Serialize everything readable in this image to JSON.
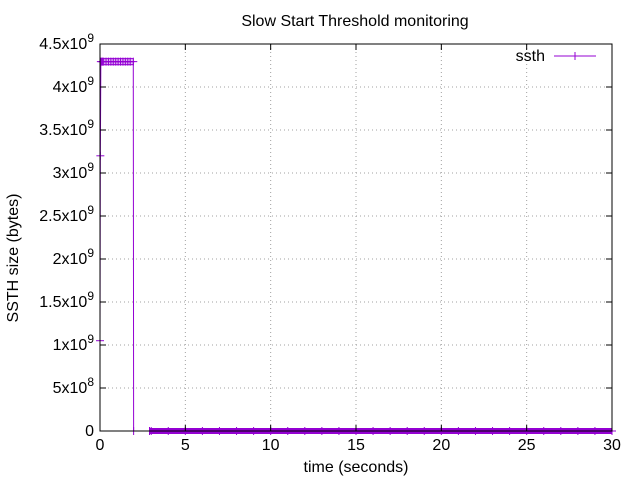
{
  "chart_data": {
    "type": "line",
    "title": "Slow Start Threshold monitoring",
    "xlabel": "time (seconds)",
    "ylabel": "SSTH size (bytes)",
    "xlim": [
      0,
      30
    ],
    "ylim": [
      0,
      4500000000
    ],
    "grid": true,
    "legend_position": "top-right",
    "x_ticks": [
      {
        "value": 0,
        "label": "0"
      },
      {
        "value": 5,
        "label": "5"
      },
      {
        "value": 10,
        "label": "10"
      },
      {
        "value": 15,
        "label": "15"
      },
      {
        "value": 20,
        "label": "20"
      },
      {
        "value": 25,
        "label": "25"
      },
      {
        "value": 30,
        "label": "30"
      }
    ],
    "y_ticks": [
      {
        "value": 0,
        "mantissa": "0",
        "base": "",
        "exp": ""
      },
      {
        "value": 500000000,
        "mantissa": "5",
        "base": "x10",
        "exp": "8"
      },
      {
        "value": 1000000000,
        "mantissa": "1",
        "base": "x10",
        "exp": "9"
      },
      {
        "value": 1500000000,
        "mantissa": "1.5",
        "base": "x10",
        "exp": "9"
      },
      {
        "value": 2000000000,
        "mantissa": "2",
        "base": "x10",
        "exp": "9"
      },
      {
        "value": 2500000000,
        "mantissa": "2.5",
        "base": "x10",
        "exp": "9"
      },
      {
        "value": 3000000000,
        "mantissa": "3",
        "base": "x10",
        "exp": "9"
      },
      {
        "value": 3500000000,
        "mantissa": "3.5",
        "base": "x10",
        "exp": "9"
      },
      {
        "value": 4000000000,
        "mantissa": "4",
        "base": "x10",
        "exp": "9"
      },
      {
        "value": 4500000000,
        "mantissa": "4.5",
        "base": "x10",
        "exp": "9"
      }
    ],
    "series": [
      {
        "name": "ssth",
        "color": "#9400d3",
        "marker": "plus",
        "x": [
          0.0,
          0.02,
          0.05,
          0.1,
          0.15,
          0.2,
          0.3,
          0.4,
          0.5,
          0.6,
          0.7,
          0.8,
          0.9,
          1.0,
          1.1,
          1.2,
          1.3,
          1.4,
          1.5,
          1.6,
          1.7,
          1.8,
          1.95,
          1.97,
          2.9,
          3.0,
          4.0,
          5.0,
          6.0,
          7.0,
          8.0,
          9.0,
          10.0,
          11.0,
          12.0,
          13.0,
          14.0,
          15.0,
          16.0,
          17.0,
          18.0,
          19.0,
          20.0,
          21.0,
          22.0,
          23.0,
          24.0,
          25.0,
          26.0,
          27.0,
          28.0,
          29.0,
          30.0
        ],
        "y": [
          1050000000,
          3200000000,
          4295000000,
          4295000000,
          4295000000,
          4295000000,
          4295000000,
          4295000000,
          4295000000,
          4295000000,
          4295000000,
          4295000000,
          4295000000,
          4295000000,
          4295000000,
          4295000000,
          4295000000,
          4295000000,
          4295000000,
          4295000000,
          4295000000,
          4295000000,
          4295000000,
          0,
          0,
          0,
          0,
          0,
          0,
          0,
          0,
          0,
          0,
          0,
          0,
          0,
          0,
          0,
          0,
          0,
          0,
          0,
          0,
          0,
          0,
          0,
          0,
          0,
          0,
          0,
          0,
          0,
          0
        ]
      }
    ]
  }
}
